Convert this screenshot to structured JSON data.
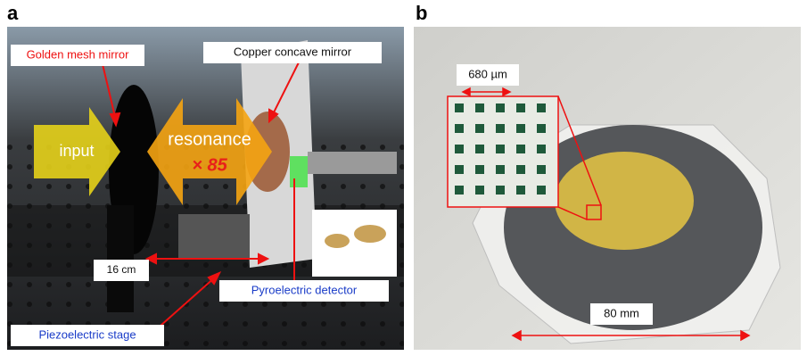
{
  "panels": [
    {
      "label": "a",
      "annotations": {
        "golden_mesh_mirror": "Golden mesh mirror",
        "copper_concave_mirror": "Copper concave mirror",
        "input": "input",
        "resonance": "resonance",
        "gain": "× 85",
        "distance": "16 cm",
        "detector": "Pyroelectric detector",
        "stage": "Piezoelectric stage"
      }
    },
    {
      "label": "b",
      "annotations": {
        "mesh_pitch": "680 µm",
        "diameter": "80 mm"
      }
    }
  ]
}
